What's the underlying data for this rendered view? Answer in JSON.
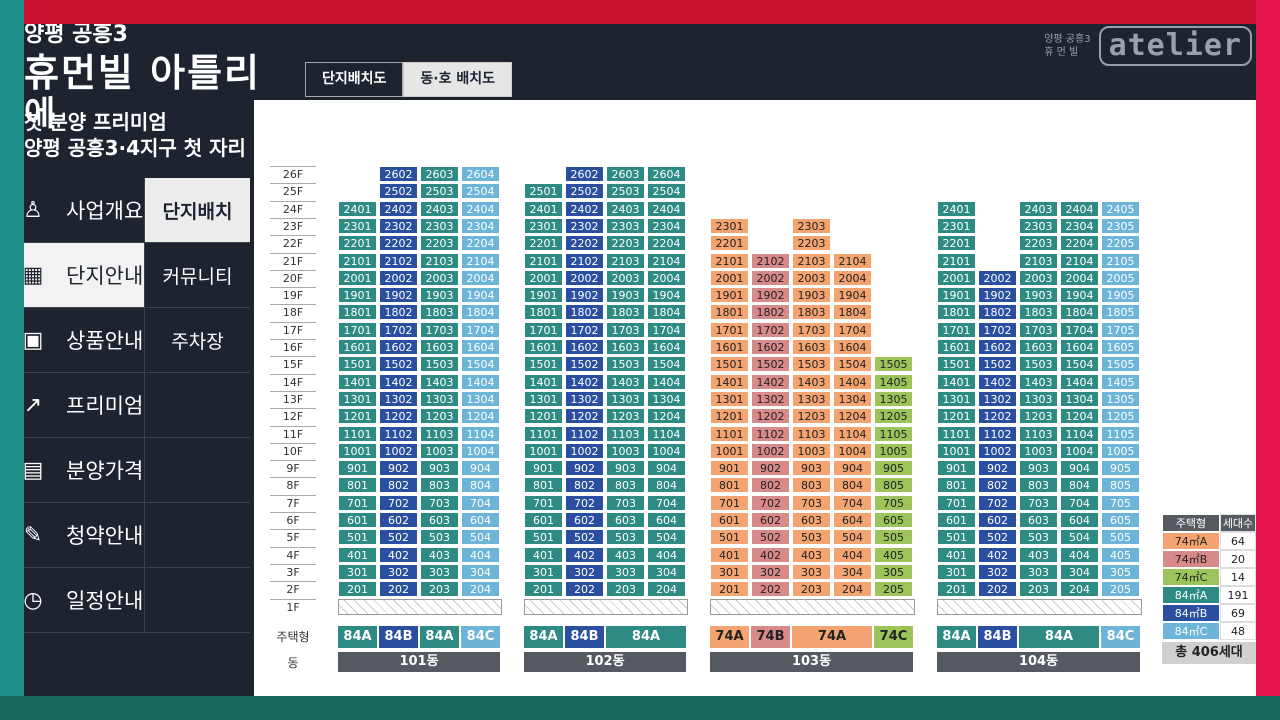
{
  "header": {
    "title_small": "양평 공흥3",
    "title_main": "휴먼빌 아틀리",
    "title_main2": "에",
    "sub1": "첫 분양 프리미엄",
    "sub2": "양평 공흥3·4지구 첫 자리"
  },
  "tabs": [
    {
      "label": "단지배치도",
      "active": true
    },
    {
      "label": "동·호 배치도",
      "active": false
    }
  ],
  "logo": {
    "small_line1": "양평 공흥3",
    "small_line2": "휴 먼 빌",
    "text": "atelier"
  },
  "menu": [
    {
      "label": "사업개요",
      "icon": "building-person-icon",
      "active": false
    },
    {
      "label": "단지안내",
      "icon": "apartment-icon",
      "active": true
    },
    {
      "label": "상품안내",
      "icon": "floorplan-icon",
      "active": false
    },
    {
      "label": "프리미엄",
      "icon": "chart-up-icon",
      "active": false
    },
    {
      "label": "분양가격",
      "icon": "calculator-icon",
      "active": false
    },
    {
      "label": "청약안내",
      "icon": "edit-document-icon",
      "active": false
    },
    {
      "label": "일정안내",
      "icon": "clock-icon",
      "active": false
    }
  ],
  "submenu": [
    {
      "label": "단지배치",
      "active": true
    },
    {
      "label": "커뮤니티",
      "active": false
    },
    {
      "label": "주차장",
      "active": false
    },
    {
      "label": "",
      "active": false
    },
    {
      "label": "",
      "active": false
    },
    {
      "label": "",
      "active": false
    },
    {
      "label": "",
      "active": false
    }
  ],
  "floor_labels": [
    "26F",
    "25F",
    "24F",
    "23F",
    "22F",
    "21F",
    "20F",
    "19F",
    "18F",
    "17F",
    "16F",
    "15F",
    "14F",
    "13F",
    "12F",
    "11F",
    "10F",
    "9F",
    "8F",
    "7F",
    "6F",
    "5F",
    "4F",
    "3F",
    "2F",
    "1F"
  ],
  "type_row_label": "주택형",
  "dong_row_label": "동",
  "colors": {
    "84A": "#2e8b84",
    "84B": "#2a4fa0",
    "84C": "#6cb4d8",
    "74A": "#f4a470",
    "74B": "#d88a8a",
    "74C": "#9cc45a"
  },
  "buildings": [
    {
      "name": "101동",
      "type_labels": [
        {
          "text": "84A",
          "type": "84A",
          "span": 1
        },
        {
          "text": "84B",
          "type": "84B",
          "span": 1
        },
        {
          "text": "84A",
          "type": "84A",
          "span": 1
        },
        {
          "text": "84C",
          "type": "84C",
          "span": 1
        }
      ],
      "columns": [
        {
          "type": "84A",
          "suffix": "01",
          "top": 24
        },
        {
          "type": "84B",
          "suffix": "02",
          "top": 26
        },
        {
          "type": "84A",
          "suffix": "03",
          "top": 26
        },
        {
          "type": "84C",
          "suffix": "04",
          "top": 26
        }
      ]
    },
    {
      "name": "102동",
      "type_labels": [
        {
          "text": "84A",
          "type": "84A",
          "span": 1
        },
        {
          "text": "84B",
          "type": "84B",
          "span": 1
        },
        {
          "text": "84A",
          "type": "84A",
          "span": 2
        }
      ],
      "columns": [
        {
          "type": "84A",
          "suffix": "01",
          "top": 25
        },
        {
          "type": "84B",
          "suffix": "02",
          "top": 26
        },
        {
          "type": "84A",
          "suffix": "03",
          "top": 26
        },
        {
          "type": "84A",
          "suffix": "04",
          "top": 26
        }
      ]
    },
    {
      "name": "103동",
      "type_labels": [
        {
          "text": "74A",
          "type": "74A",
          "span": 1
        },
        {
          "text": "74B",
          "type": "74B",
          "span": 1
        },
        {
          "text": "74A",
          "type": "74A",
          "span": 2
        },
        {
          "text": "74C",
          "type": "74C",
          "span": 1
        }
      ],
      "columns": [
        {
          "type": "74A",
          "suffix": "01",
          "top": 23,
          "gaps": []
        },
        {
          "type": "74B",
          "suffix": "02",
          "top": 21
        },
        {
          "type": "74A",
          "suffix": "03",
          "top": 23
        },
        {
          "type": "74A",
          "suffix": "04",
          "top": 21
        },
        {
          "type": "74C",
          "suffix": "05",
          "top": 15
        }
      ]
    },
    {
      "name": "104동",
      "type_labels": [
        {
          "text": "84A",
          "type": "84A",
          "span": 1
        },
        {
          "text": "84B",
          "type": "84B",
          "span": 1
        },
        {
          "text": "84A",
          "type": "84A",
          "span": 2
        },
        {
          "text": "84C",
          "type": "84C",
          "span": 1
        }
      ],
      "columns": [
        {
          "type": "84A",
          "suffix": "01",
          "top": 24
        },
        {
          "type": "84B",
          "suffix": "02",
          "top": 20
        },
        {
          "type": "84A",
          "suffix": "03",
          "top": 24
        },
        {
          "type": "84A",
          "suffix": "04",
          "top": 24
        },
        {
          "type": "84C",
          "suffix": "05",
          "top": 24
        }
      ]
    }
  ],
  "legend": {
    "header_type": "주택형",
    "header_count": "세대수",
    "rows": [
      {
        "type": "74㎡A",
        "key": "74A",
        "count": "64"
      },
      {
        "type": "74㎡B",
        "key": "74B",
        "count": "20"
      },
      {
        "type": "74㎡C",
        "key": "74C",
        "count": "14"
      },
      {
        "type": "84㎡A",
        "key": "84A",
        "count": "191"
      },
      {
        "type": "84㎡B",
        "key": "84B",
        "count": "69"
      },
      {
        "type": "84㎡C",
        "key": "84C",
        "count": "48"
      }
    ],
    "total": "총 406세대"
  }
}
